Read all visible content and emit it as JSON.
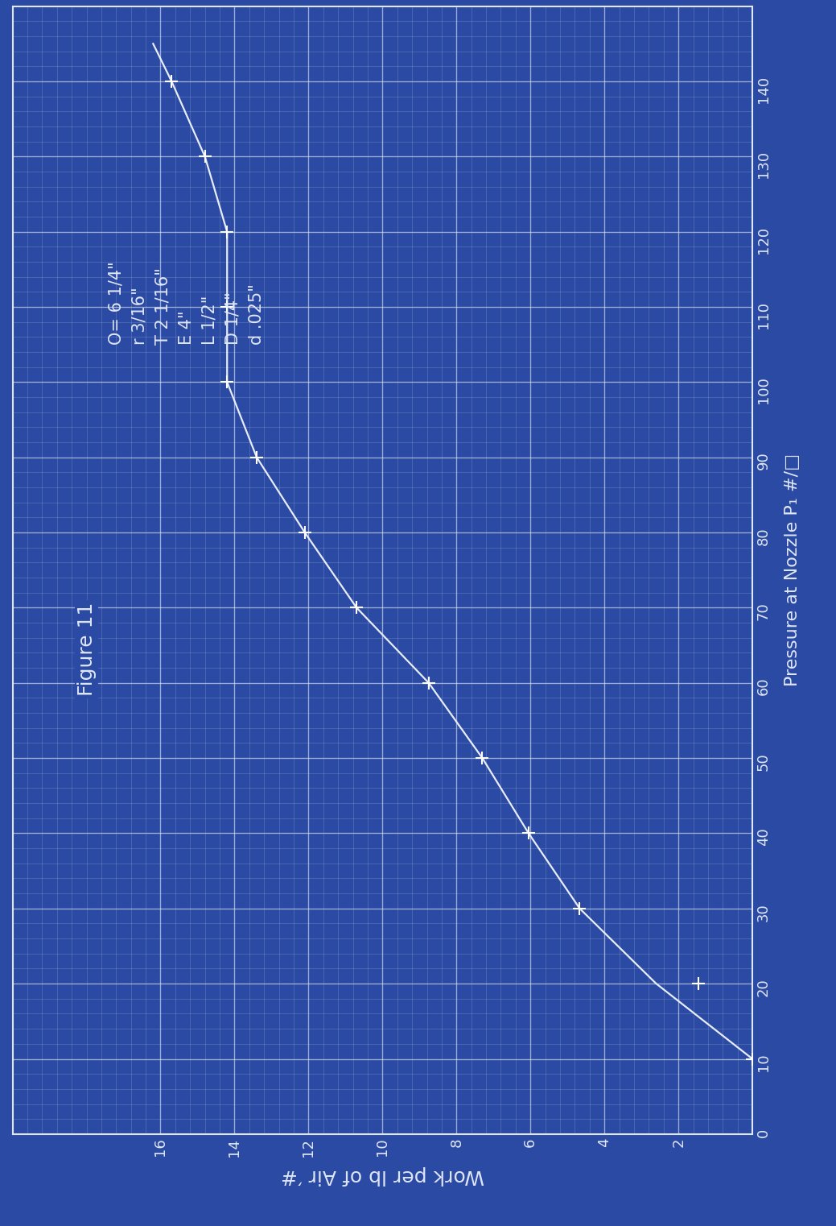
{
  "chart_data": {
    "type": "line",
    "x_label": "Pressure at Nozzle P₁ #/□",
    "y_label": "Work per lb of Air ′#",
    "annotations": [
      "Figure 11",
      "d .025\"",
      "D 1/4\"",
      "L 1/2\"",
      "E 4\"",
      "T 2 1/16\"",
      "r 3/16\"",
      "O= 6 1/4\""
    ],
    "x": [
      10,
      20,
      30,
      40,
      50,
      60,
      70,
      80,
      90,
      100,
      110,
      120,
      130,
      140,
      145
    ],
    "series": [
      {
        "type": "line",
        "color": "#e6ecf8",
        "line_style": "solid",
        "values": [
          0,
          2.6,
          4.67,
          6.05,
          7.3,
          8.75,
          10.7,
          12.1,
          13.4,
          14.2,
          14.2,
          14.2,
          14.8,
          15.7,
          16.2
        ]
      },
      {
        "type": "scatter",
        "color": "#ffffff",
        "marker": "+",
        "values": [
          0,
          1.45,
          4.67,
          6.05,
          7.3,
          8.75,
          10.7,
          12.1,
          13.4,
          14.2,
          14.2,
          14.2,
          14.8,
          15.7,
          null
        ]
      }
    ],
    "xlim": [
      0,
      150
    ],
    "xticks": [
      0,
      10,
      20,
      30,
      40,
      50,
      60,
      70,
      80,
      90,
      100,
      110,
      120,
      130,
      140
    ],
    "ylim": [
      0,
      20
    ],
    "yticks": [
      2,
      4,
      6,
      8,
      10,
      12,
      14,
      16
    ],
    "grid": true
  }
}
